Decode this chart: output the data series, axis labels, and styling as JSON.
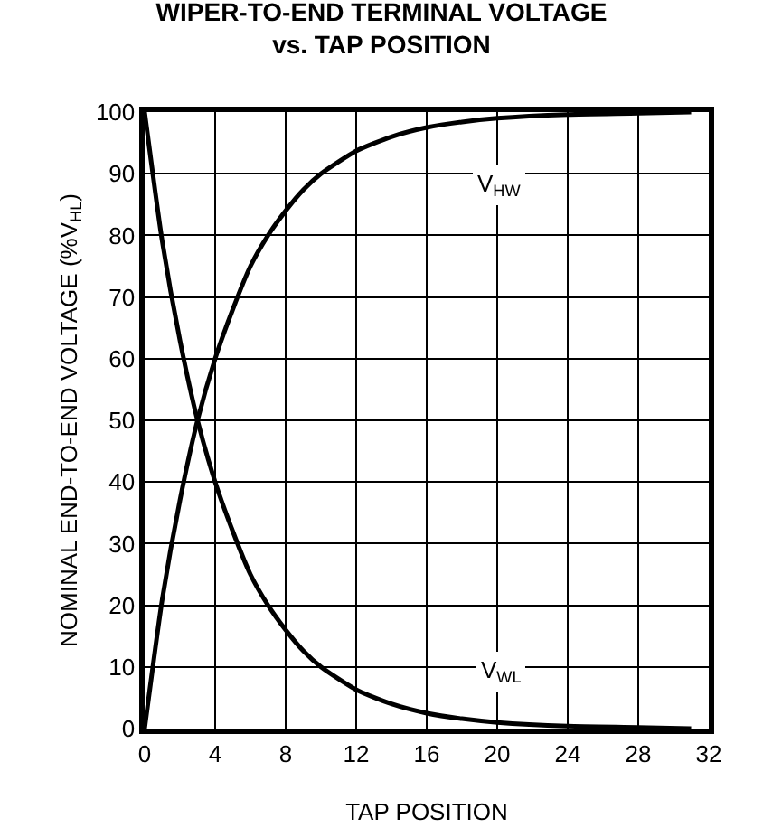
{
  "chart_data": {
    "type": "line",
    "title": "WIPER-TO-END TERMINAL VOLTAGE\nvs. TAP POSITION",
    "xlabel": "TAP POSITION",
    "ylabel": "NOMINAL END-TO-END VOLTAGE (%V$_{HL}$)",
    "x": [
      0,
      1,
      2,
      3,
      4,
      5,
      6,
      7,
      8,
      9,
      10,
      12,
      14,
      16,
      18,
      20,
      24,
      28,
      31
    ],
    "series": [
      {
        "name": "V$_{HW}$",
        "color": "#000000",
        "values": [
          0,
          21,
          37,
          50,
          60,
          68,
          75,
          80,
          84,
          87.4,
          90,
          93.7,
          96,
          97.5,
          98.4,
          99,
          99.6,
          99.8,
          100
        ]
      },
      {
        "name": "V$_{WL}$",
        "color": "#000000",
        "values": [
          100,
          79,
          63,
          50,
          40,
          32,
          25,
          20,
          16,
          12.6,
          10,
          6.3,
          4,
          2.5,
          1.6,
          1,
          0.4,
          0.2,
          0
        ]
      }
    ],
    "xlim": [
      0,
      32
    ],
    "xticks": [
      0,
      4,
      8,
      12,
      16,
      20,
      24,
      28,
      32
    ],
    "ylim": [
      0,
      100
    ],
    "yticks": [
      0,
      10,
      20,
      30,
      40,
      50,
      60,
      70,
      80,
      90,
      100
    ],
    "grid": true,
    "legend": false,
    "marker": "none",
    "line_style": "solid"
  }
}
